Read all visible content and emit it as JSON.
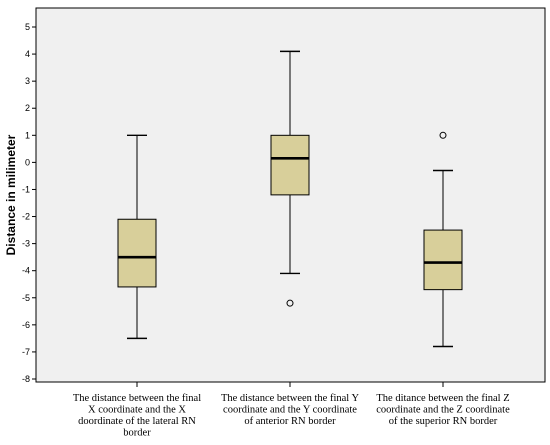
{
  "chart_data": {
    "type": "box",
    "ylabel": "Distance in milimeter",
    "ylim": [
      -8,
      5
    ],
    "yticks": [
      "5",
      "4",
      "3",
      "2",
      "1",
      "0",
      "-1",
      "-2",
      "-3",
      "-4",
      "-5",
      "-6",
      "-7",
      "-8"
    ],
    "grid": false,
    "categories": [
      {
        "lines": [
          "The distance between the final",
          "X coordinate and the X",
          "doordinate of the lateral RN",
          "border"
        ]
      },
      {
        "lines": [
          "The distance between the final Y",
          "coordinate and the Y coordinate",
          "of anterior RN border"
        ]
      },
      {
        "lines": [
          "The ditance between the final Z",
          "coordinate and the Z coordinate",
          "of the superior RN border"
        ]
      }
    ],
    "boxes": [
      {
        "whisker_low": -6.5,
        "q1": -4.6,
        "median": -3.5,
        "q3": -2.1,
        "whisker_high": 1.0,
        "outliers": []
      },
      {
        "whisker_low": -4.1,
        "q1": -1.2,
        "median": 0.15,
        "q3": 1.0,
        "whisker_high": 4.1,
        "outliers": [
          -5.2
        ]
      },
      {
        "whisker_low": -6.8,
        "q1": -4.7,
        "median": -3.7,
        "q3": -2.5,
        "whisker_high": -0.3,
        "outliers": [
          1.0
        ]
      }
    ],
    "colors": {
      "plot_bg": "#f0f0f0",
      "box_fill": "#d8cf9a",
      "line": "#000000"
    }
  }
}
